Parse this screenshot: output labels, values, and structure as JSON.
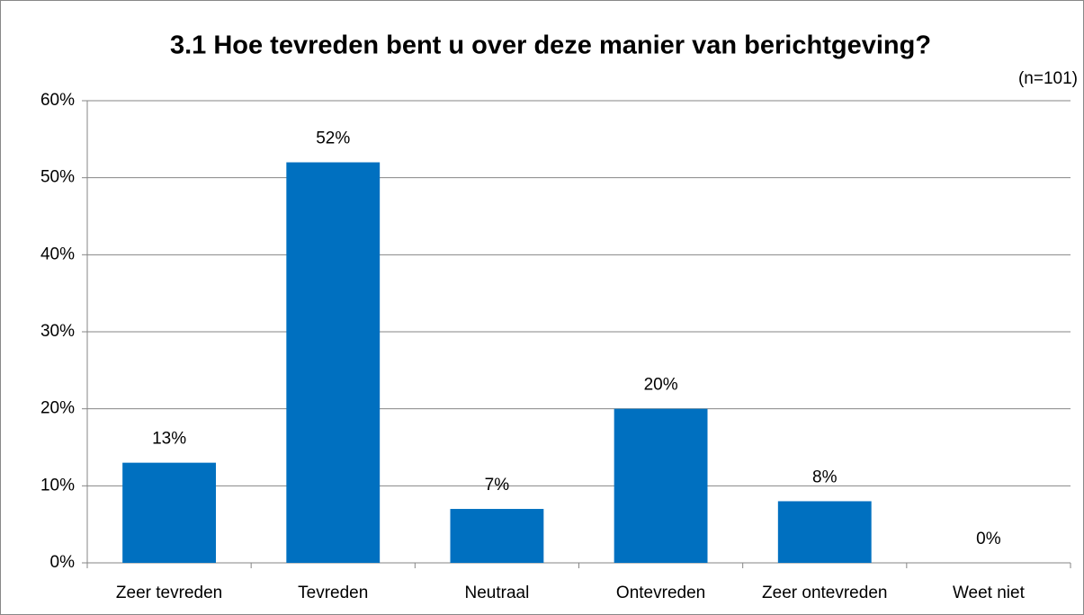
{
  "chart_data": {
    "type": "bar",
    "title": "3.1 Hoe tevreden bent u over deze manier van berichtgeving?",
    "subtitle": "(n=101)",
    "categories": [
      "Zeer tevreden",
      "Tevreden",
      "Neutraal",
      "Ontevreden",
      "Zeer ontevreden",
      "Weet niet"
    ],
    "values": [
      13,
      52,
      7,
      20,
      8,
      0
    ],
    "value_labels": [
      "13%",
      "52%",
      "7%",
      "20%",
      "8%",
      "0%"
    ],
    "color": "#0070c0",
    "ylim": [
      0,
      60
    ],
    "yticks": [
      {
        "value": 0,
        "label": "0%"
      },
      {
        "value": 10,
        "label": "10%"
      },
      {
        "value": 20,
        "label": "20%"
      },
      {
        "value": 30,
        "label": "30%"
      },
      {
        "value": 40,
        "label": "40%"
      },
      {
        "value": 50,
        "label": "50%"
      },
      {
        "value": 60,
        "label": "60%"
      }
    ],
    "grid": true
  }
}
